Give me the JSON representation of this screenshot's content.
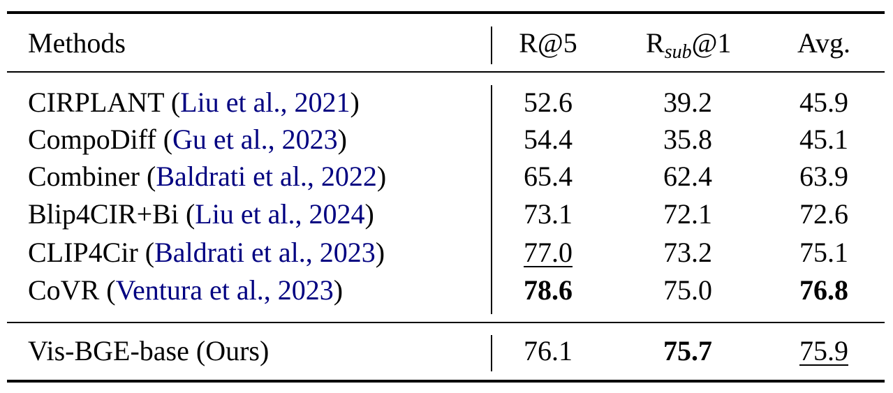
{
  "header": {
    "methods": "Methods",
    "r5": "R@5",
    "rsub_base": "R",
    "rsub_sub": "sub",
    "rsub_tail": "@1",
    "avg": "Avg."
  },
  "colors": {
    "citation": "#000080"
  },
  "rows": [
    {
      "name": "CIRPLANT",
      "cite": "Liu et al., 2021",
      "r5": "52.6",
      "rsub": "39.2",
      "avg": "45.9",
      "style": {
        "r5": "",
        "rsub": "",
        "avg": ""
      }
    },
    {
      "name": "CompoDiff",
      "cite": "Gu et al., 2023",
      "r5": "54.4",
      "rsub": "35.8",
      "avg": "45.1",
      "style": {
        "r5": "",
        "rsub": "",
        "avg": ""
      }
    },
    {
      "name": "Combiner",
      "cite": "Baldrati et al., 2022",
      "r5": "65.4",
      "rsub": "62.4",
      "avg": "63.9",
      "style": {
        "r5": "",
        "rsub": "",
        "avg": ""
      }
    },
    {
      "name": "Blip4CIR+Bi",
      "cite": "Liu et al., 2024",
      "r5": "73.1",
      "rsub": "72.1",
      "avg": "72.6",
      "style": {
        "r5": "",
        "rsub": "",
        "avg": ""
      }
    },
    {
      "name": "CLIP4Cir",
      "cite": "Baldrati et al., 2023",
      "r5": "77.0",
      "rsub": "73.2",
      "avg": "75.1",
      "style": {
        "r5": "underline",
        "rsub": "",
        "avg": ""
      }
    },
    {
      "name": "CoVR",
      "cite": "Ventura et al., 2023",
      "r5": "78.6",
      "rsub": "75.0",
      "avg": "76.8",
      "style": {
        "r5": "bold",
        "rsub": "",
        "avg": "bold"
      }
    }
  ],
  "ours": {
    "name": "Vis-BGE-base (Ours)",
    "r5": "76.1",
    "rsub": "75.7",
    "avg": "75.9",
    "style": {
      "r5": "",
      "rsub": "bold",
      "avg": "underline"
    }
  }
}
